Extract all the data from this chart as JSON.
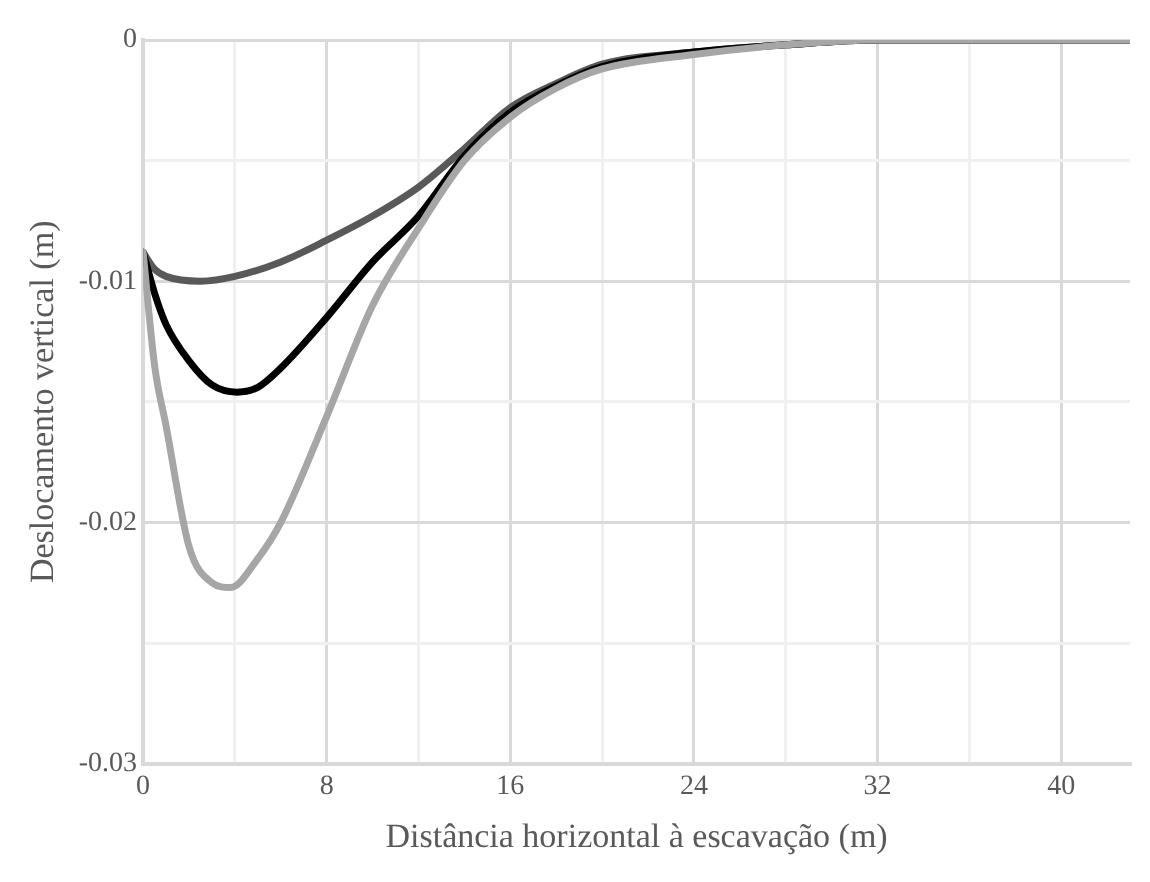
{
  "chart_data": {
    "type": "line",
    "xlabel": "Distância horizontal à escavação (m)",
    "ylabel": "Deslocamento vertical (m)",
    "xlim": [
      0,
      43
    ],
    "ylim": [
      -0.03,
      0
    ],
    "xticks": [
      0,
      {
        "value": 4,
        "label": null
      },
      8,
      {
        "value": 12,
        "label": null
      },
      16,
      {
        "value": 20,
        "label": null
      },
      24,
      {
        "value": 28,
        "label": null
      },
      32,
      {
        "value": 36,
        "label": null
      },
      40
    ],
    "yticks": [
      -0.03,
      {
        "value": -0.025,
        "label": null
      },
      -0.02,
      {
        "value": -0.015,
        "label": null
      },
      -0.01,
      {
        "value": -0.005,
        "label": null
      },
      0
    ],
    "grid": true,
    "legend": false,
    "marker": "none",
    "line_style": "solid",
    "series": [
      {
        "color": "#a6a6a6",
        "x": [
          0,
          0.5,
          1,
          2,
          3,
          3.8,
          5,
          6,
          8,
          10,
          12,
          14,
          16,
          18,
          20,
          24,
          28,
          32,
          36,
          43
        ],
        "values": [
          -0.0088,
          -0.0135,
          -0.016,
          -0.021,
          -0.0225,
          -0.0227,
          -0.0215,
          -0.02,
          -0.0156,
          -0.011,
          -0.0078,
          -0.005,
          -0.0032,
          -0.002,
          -0.0012,
          -0.0006,
          -0.0002,
          0,
          0,
          0
        ]
      },
      {
        "color": "#000000",
        "x": [
          0,
          0.5,
          1,
          2,
          3,
          4.1,
          5,
          6,
          8,
          10,
          12,
          14,
          16,
          18,
          20,
          24,
          28,
          32,
          36,
          43
        ],
        "values": [
          -0.0088,
          -0.0105,
          -0.0118,
          -0.0133,
          -0.0143,
          -0.0146,
          -0.0144,
          -0.0136,
          -0.0115,
          -0.0092,
          -0.0073,
          -0.0048,
          -0.003,
          -0.0019,
          -0.0011,
          -0.0005,
          -0.0002,
          0,
          0,
          0
        ]
      },
      {
        "color": "#595959",
        "x": [
          0,
          0.5,
          1,
          2.5,
          4,
          6,
          8,
          10,
          12,
          14,
          16,
          18,
          20,
          24,
          28,
          32,
          36,
          43
        ],
        "values": [
          -0.0088,
          -0.0095,
          -0.0098,
          -0.01,
          -0.0098,
          -0.0092,
          -0.0083,
          -0.0073,
          -0.0061,
          -0.0045,
          -0.0028,
          -0.0018,
          -0.001,
          -0.0005,
          -0.0002,
          0,
          0,
          0
        ]
      }
    ]
  }
}
